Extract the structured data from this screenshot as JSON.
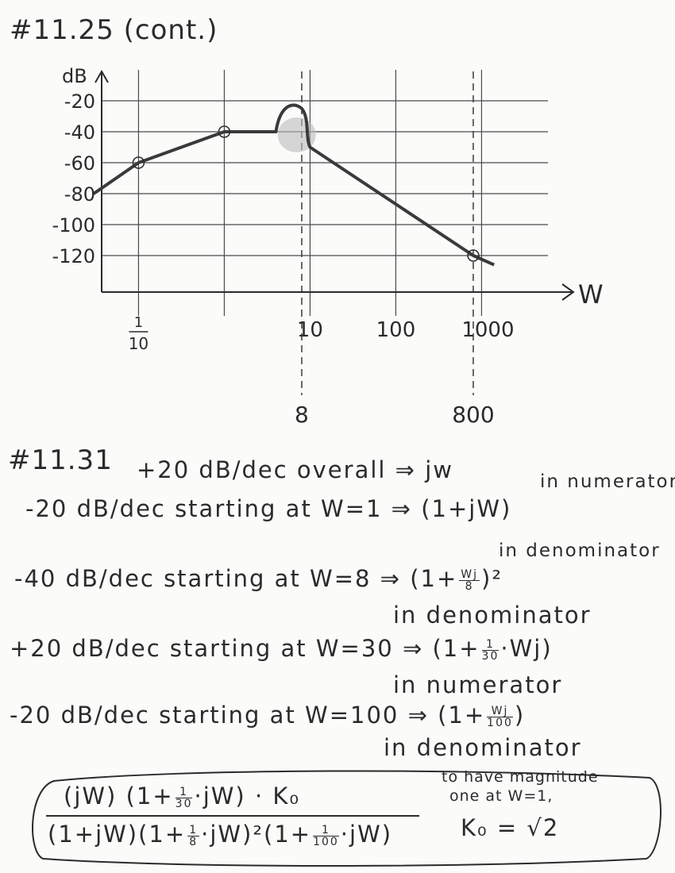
{
  "header": {
    "title": "#11.25 (cont.)"
  },
  "chart_data": {
    "type": "line",
    "title": "",
    "xlabel": "W",
    "ylabel": "dB",
    "x_scale": "log",
    "y_ticks": [
      -20,
      -40,
      -60,
      -80,
      -100,
      -120
    ],
    "y_tick_labels": [
      "-20",
      "-40",
      "-60",
      "-80",
      "-100",
      "-120"
    ],
    "x_tick_labels": [
      {
        "value": 0.1,
        "numerator": "1",
        "denominator": "10"
      },
      {
        "value": 10,
        "label": "10"
      },
      {
        "value": 100,
        "label": "100"
      },
      {
        "value": 1000,
        "label": "1000"
      }
    ],
    "marked_frequencies": [
      {
        "value": 8,
        "label": "8"
      },
      {
        "value": 800,
        "label": "800"
      }
    ],
    "series": [
      {
        "values": [
          [
            0.03,
            -80
          ],
          [
            0.1,
            -60
          ],
          [
            1,
            -40
          ],
          [
            4,
            -40
          ],
          [
            6,
            -22
          ],
          [
            8,
            -25
          ],
          [
            10,
            -50
          ],
          [
            800,
            -120
          ],
          [
            1400,
            -126
          ]
        ]
      }
    ],
    "circled_points": [
      [
        0.1,
        -60
      ],
      [
        1,
        -40
      ],
      [
        800,
        -120
      ]
    ]
  },
  "section": {
    "title": "#11.31",
    "lines": [
      {
        "text": "+20 dB/dec overall ⇒ jw",
        "note": "in numerator"
      },
      {
        "text": "-20 dB/dec starting at W=1 ⇒ (1+jW)",
        "note": "in denominator"
      },
      {
        "text_a": "-40 dB/dec starting at W=8 ⇒ (1+",
        "frac_num": "Wj",
        "frac_den": "8",
        "text_b": ")²",
        "note": "in denominator"
      },
      {
        "text_a": "+20 dB/dec starting at W=30 ⇒ (1+",
        "frac_num": "1",
        "frac_den": "30",
        "text_b": "·Wj)",
        "note": "in numerator"
      },
      {
        "text_a": "-20 dB/dec starting at W=100 ⇒ (1+",
        "frac_num": "Wj",
        "frac_den": "100",
        "text_b": ")",
        "note": "in denominator"
      }
    ]
  },
  "result": {
    "numerator_a": "(jW) (1+",
    "numerator_frac_num": "1",
    "numerator_frac_den": "30",
    "numerator_b": "·jW) · K₀",
    "denominator_a": "(1+jW)(1+",
    "denominator_frac1_num": "1",
    "denominator_frac1_den": "8",
    "denominator_b": "·jW)²(1+",
    "denominator_frac2_num": "1",
    "denominator_frac2_den": "100",
    "denominator_c": "·jW)",
    "side_note_1": "to have magnitude",
    "side_note_2": "one at W=1,",
    "k0_expr": "K₀ = √2"
  }
}
